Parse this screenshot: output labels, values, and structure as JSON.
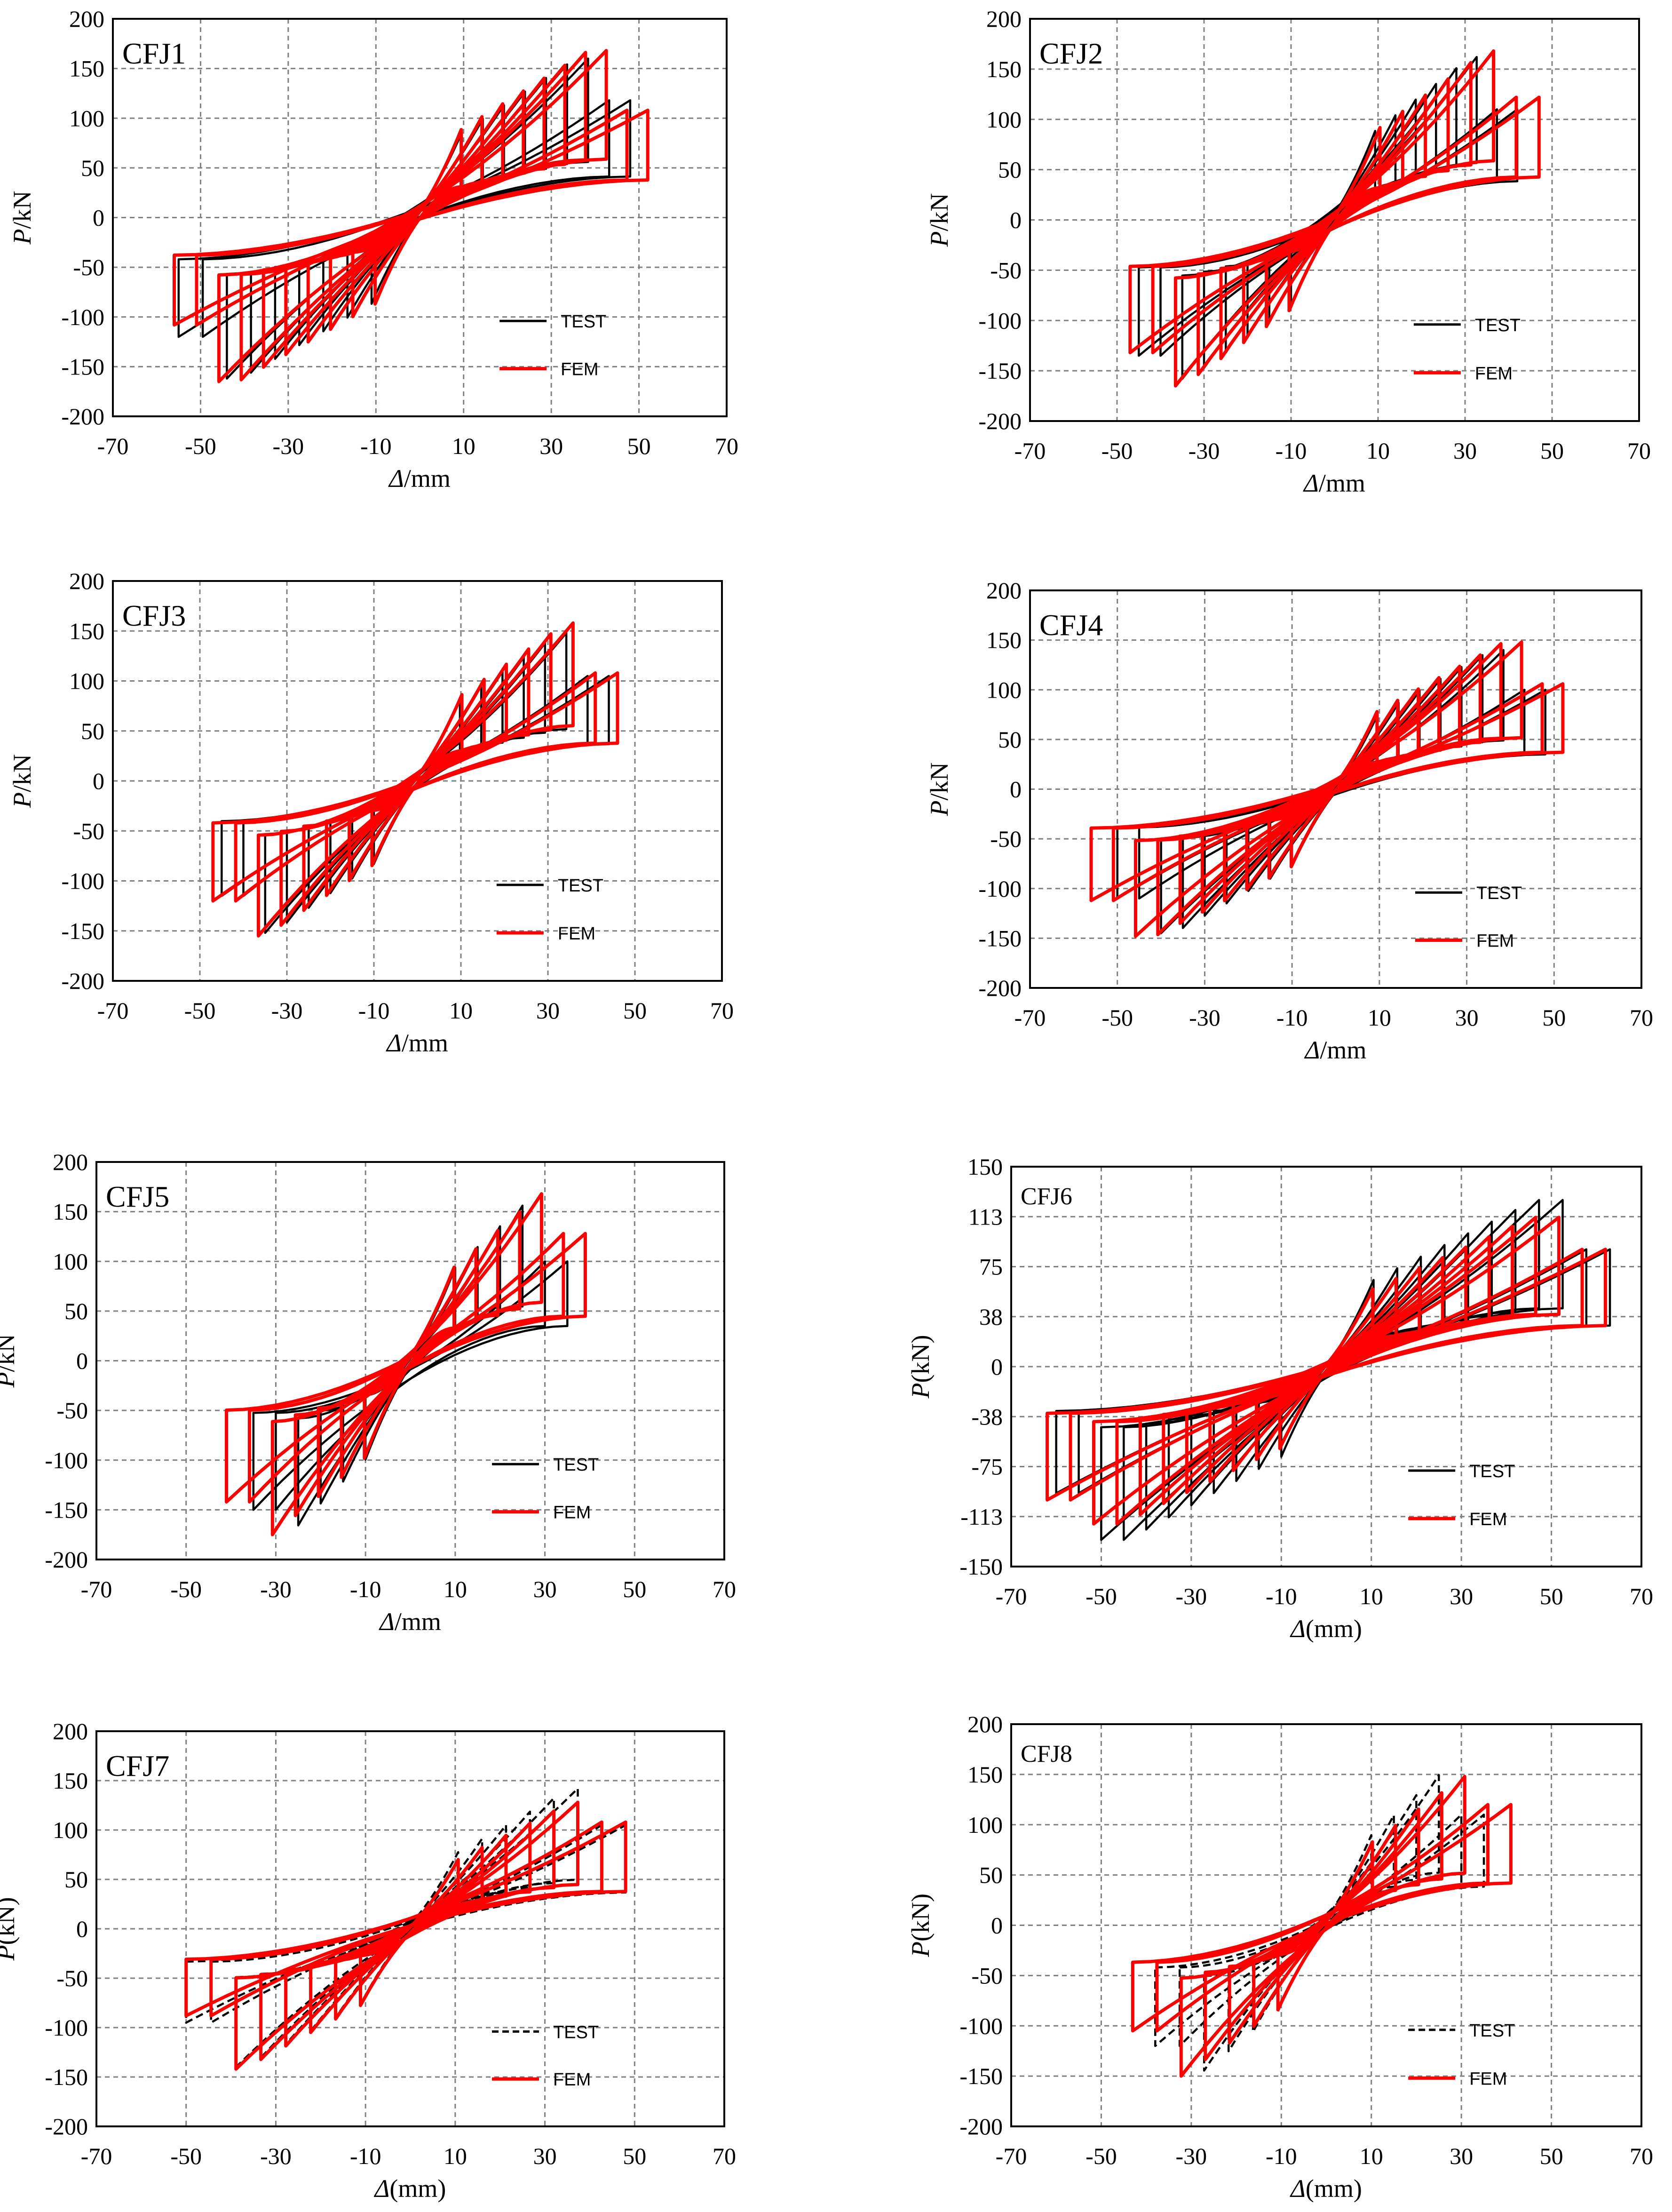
{
  "figure": {
    "kind": "hysteresis-panels",
    "panel_count": 8
  },
  "colors": {
    "test": "#000000",
    "fem": "#ff0000",
    "grid": "#808080",
    "axis": "#000000"
  },
  "chart_data": [
    {
      "type": "line",
      "title": "CFJ1",
      "xlabel_italic": "Δ",
      "xlabel_rest": "/mm",
      "ylabel_italic": "P",
      "ylabel_rest": "/kN",
      "xlim": [
        -70,
        70
      ],
      "ylim": [
        -200,
        200
      ],
      "xticks": [
        "-70",
        "-50",
        "-30",
        "-10",
        "10",
        "30",
        "50",
        "70"
      ],
      "yticks": [
        "200",
        "150",
        "100",
        "50",
        "0",
        "-50",
        "-100",
        "-150",
        "-200"
      ],
      "legend": "bottom-right",
      "test_dashed": false,
      "series": [
        {
          "name": "TEST",
          "amplitudes": [
            10,
            15,
            20,
            25,
            30,
            35,
            40,
            45,
            50
          ],
          "peak_pos": 160,
          "peak_neg": -162,
          "pos_end": 118,
          "neg_end": -120,
          "max_pos_disp": 48,
          "max_neg_disp": -55
        },
        {
          "name": "FEM",
          "amplitudes": [
            10,
            15,
            20,
            25,
            30,
            35,
            40,
            45,
            50,
            55
          ],
          "peak_pos": 168,
          "peak_neg": -165,
          "pos_end": 108,
          "neg_end": -108,
          "max_pos_disp": 52,
          "max_neg_disp": -56
        }
      ]
    },
    {
      "type": "line",
      "title": "CFJ2",
      "xlabel_italic": "Δ",
      "xlabel_rest": "/mm",
      "ylabel_italic": "P",
      "ylabel_rest": "/kN",
      "xlim": [
        -70,
        70
      ],
      "ylim": [
        -200,
        200
      ],
      "xticks": [
        "-70",
        "-50",
        "-30",
        "-10",
        "10",
        "30",
        "50",
        "70"
      ],
      "yticks": [
        "200",
        "150",
        "100",
        "50",
        "0",
        "-50",
        "-100",
        "-150",
        "-200"
      ],
      "legend": "bottom-right",
      "test_dashed": false,
      "series": [
        {
          "name": "TEST",
          "amplitudes": [
            10,
            15,
            20,
            25,
            30,
            35,
            40,
            45
          ],
          "peak_pos": 162,
          "peak_neg": -158,
          "pos_end": 110,
          "neg_end": -135,
          "max_pos_disp": 42,
          "max_neg_disp": -45
        },
        {
          "name": "FEM",
          "amplitudes": [
            10,
            15,
            20,
            25,
            30,
            35,
            40,
            45
          ],
          "peak_pos": 168,
          "peak_neg": -165,
          "pos_end": 122,
          "neg_end": -132,
          "max_pos_disp": 47,
          "max_neg_disp": -47
        }
      ]
    },
    {
      "type": "line",
      "title": "CFJ3",
      "xlabel_italic": "Δ",
      "xlabel_rest": "/mm",
      "ylabel_italic": "P",
      "ylabel_rest": "/kN",
      "xlim": [
        -70,
        70
      ],
      "ylim": [
        -200,
        200
      ],
      "xticks": [
        "-70",
        "-50",
        "-30",
        "-10",
        "10",
        "30",
        "50",
        "70"
      ],
      "yticks": [
        "200",
        "150",
        "100",
        "50",
        "0",
        "-50",
        "-100",
        "-150",
        "-200"
      ],
      "legend": "bottom-right",
      "test_dashed": false,
      "series": [
        {
          "name": "TEST",
          "amplitudes": [
            10,
            15,
            20,
            25,
            30,
            35,
            40,
            45
          ],
          "peak_pos": 148,
          "peak_neg": -152,
          "pos_end": 105,
          "neg_end": -115,
          "max_pos_disp": 44,
          "max_neg_disp": -45
        },
        {
          "name": "FEM",
          "amplitudes": [
            10,
            15,
            20,
            25,
            30,
            35,
            40,
            45
          ],
          "peak_pos": 158,
          "peak_neg": -155,
          "pos_end": 108,
          "neg_end": -120,
          "max_pos_disp": 46,
          "max_neg_disp": -47
        }
      ]
    },
    {
      "type": "line",
      "title": "CFJ4",
      "xlabel_italic": "Δ",
      "xlabel_rest": "/mm",
      "ylabel_italic": "P",
      "ylabel_rest": "/kN",
      "xlim": [
        -70,
        70
      ],
      "ylim": [
        -200,
        200
      ],
      "xticks": [
        "-70",
        "-50",
        "-30",
        "-10",
        "10",
        "30",
        "50",
        "70"
      ],
      "yticks": [
        "200",
        "150",
        "100",
        "50",
        "0",
        "-50",
        "-100",
        "-150",
        "-200"
      ],
      "legend": "bottom-right",
      "test_dashed": false,
      "series": [
        {
          "name": "TEST",
          "amplitudes": [
            10,
            15,
            20,
            25,
            30,
            35,
            40,
            45,
            50
          ],
          "peak_pos": 140,
          "peak_neg": -145,
          "pos_end": 100,
          "neg_end": -110,
          "max_pos_disp": 48,
          "max_neg_disp": -50
        },
        {
          "name": "FEM",
          "amplitudes": [
            10,
            15,
            20,
            25,
            30,
            35,
            40,
            45,
            50,
            55
          ],
          "peak_pos": 148,
          "peak_neg": -148,
          "pos_end": 106,
          "neg_end": -112,
          "max_pos_disp": 52,
          "max_neg_disp": -56
        }
      ]
    },
    {
      "type": "line",
      "title": "CFJ5",
      "xlabel_italic": "Δ",
      "xlabel_rest": "/mm",
      "ylabel_italic": "P",
      "ylabel_rest": "/kN",
      "xlim": [
        -70,
        70
      ],
      "ylim": [
        -200,
        200
      ],
      "xticks": [
        "-70",
        "-50",
        "-30",
        "-10",
        "10",
        "30",
        "50",
        "70"
      ],
      "yticks": [
        "200",
        "150",
        "100",
        "50",
        "0",
        "-50",
        "-100",
        "-150",
        "-200"
      ],
      "legend": "bottom-right",
      "test_dashed": false,
      "series": [
        {
          "name": "TEST",
          "amplitudes": [
            10,
            15,
            20,
            25,
            30,
            35
          ],
          "peak_pos": 162,
          "peak_neg": -172,
          "pos_end": 100,
          "neg_end": -150,
          "max_pos_disp": 35,
          "max_neg_disp": -35
        },
        {
          "name": "FEM",
          "amplitudes": [
            10,
            15,
            20,
            25,
            30,
            35,
            40
          ],
          "peak_pos": 168,
          "peak_neg": -175,
          "pos_end": 128,
          "neg_end": -142,
          "max_pos_disp": 39,
          "max_neg_disp": -41
        }
      ]
    },
    {
      "type": "line",
      "title": "CFJ6",
      "xlabel_italic": "Δ",
      "xlabel_rest": "(mm)",
      "ylabel_italic": "P",
      "ylabel_rest": "(kN)",
      "xlim": [
        -70,
        70
      ],
      "ylim": [
        -150,
        150
      ],
      "xticks": [
        "-70",
        "-50",
        "-30",
        "-10",
        "10",
        "30",
        "50",
        "70"
      ],
      "yticks": [
        "150",
        "113",
        "75",
        "38",
        "0",
        "-38",
        "-75",
        "-113",
        "-150"
      ],
      "legend": "bottom-right",
      "test_dashed": false,
      "series": [
        {
          "name": "TEST",
          "amplitudes": [
            10,
            15,
            20,
            25,
            30,
            35,
            40,
            45,
            50,
            55,
            60
          ],
          "peak_pos": 125,
          "peak_neg": -130,
          "pos_end": 88,
          "neg_end": -95,
          "max_pos_disp": 63,
          "max_neg_disp": -60
        },
        {
          "name": "FEM",
          "amplitudes": [
            10,
            15,
            20,
            25,
            30,
            35,
            40,
            45,
            50,
            55,
            60
          ],
          "peak_pos": 112,
          "peak_neg": -118,
          "pos_end": 88,
          "neg_end": -100,
          "max_pos_disp": 62,
          "max_neg_disp": -62
        }
      ]
    },
    {
      "type": "line",
      "title": "CFJ7",
      "xlabel_italic": "Δ",
      "xlabel_rest": "(mm)",
      "ylabel_italic": "P",
      "ylabel_rest": "(kN)",
      "xlim": [
        -70,
        70
      ],
      "ylim": [
        -200,
        200
      ],
      "xticks": [
        "-70",
        "-50",
        "-30",
        "-10",
        "10",
        "30",
        "50",
        "70"
      ],
      "yticks": [
        "200",
        "150",
        "100",
        "50",
        "0",
        "-50",
        "-100",
        "-150",
        "-200"
      ],
      "legend": "bottom-right",
      "test_dashed": true,
      "series": [
        {
          "name": "TEST",
          "amplitudes": [
            10,
            15,
            20,
            25,
            30,
            35,
            40,
            45
          ],
          "peak_pos": 142,
          "peak_neg": -140,
          "pos_end": 105,
          "neg_end": -95,
          "max_pos_disp": 48,
          "max_neg_disp": -50
        },
        {
          "name": "FEM",
          "amplitudes": [
            10,
            15,
            20,
            25,
            30,
            35,
            40,
            45
          ],
          "peak_pos": 128,
          "peak_neg": -142,
          "pos_end": 108,
          "neg_end": -88,
          "max_pos_disp": 48,
          "max_neg_disp": -50
        }
      ]
    },
    {
      "type": "line",
      "title": "CFJ8",
      "xlabel_italic": "Δ",
      "xlabel_rest": "(mm)",
      "ylabel_italic": "P",
      "ylabel_rest": "(kN)",
      "xlim": [
        -70,
        70
      ],
      "ylim": [
        -200,
        200
      ],
      "xticks": [
        "-70",
        "-50",
        "-30",
        "-10",
        "10",
        "30",
        "50",
        "70"
      ],
      "yticks": [
        "200",
        "150",
        "100",
        "50",
        "0",
        "-50",
        "-100",
        "-150",
        "-200"
      ],
      "legend": "bottom-right",
      "test_dashed": true,
      "series": [
        {
          "name": "TEST",
          "amplitudes": [
            10,
            15,
            20,
            25,
            30,
            35
          ],
          "peak_pos": 155,
          "peak_neg": -150,
          "pos_end": 110,
          "neg_end": -120,
          "max_pos_disp": 35,
          "max_neg_disp": -38
        },
        {
          "name": "FEM",
          "amplitudes": [
            10,
            15,
            20,
            25,
            30,
            35,
            40
          ],
          "peak_pos": 148,
          "peak_neg": -150,
          "pos_end": 120,
          "neg_end": -105,
          "max_pos_disp": 41,
          "max_neg_disp": -43
        }
      ]
    }
  ]
}
